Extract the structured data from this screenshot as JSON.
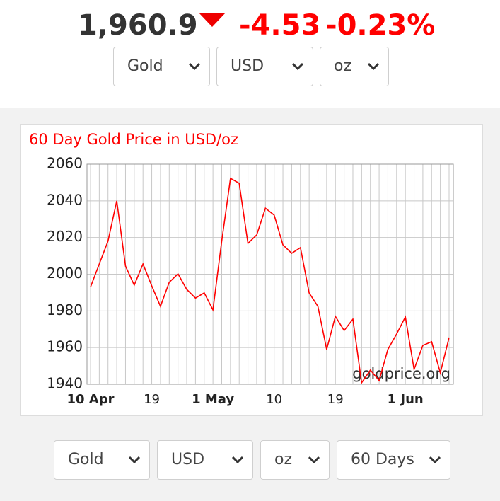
{
  "header": {
    "price": "1,960.9",
    "change": "-4.53",
    "change_percent": "-0.23%"
  },
  "selectors_top": [
    "Gold",
    "USD",
    "oz"
  ],
  "chart_data": {
    "type": "line",
    "title": "60 Day Gold Price in USD/oz",
    "categories": [
      "10 Apr",
      null,
      null,
      null,
      null,
      null,
      null,
      "19",
      null,
      null,
      null,
      null,
      null,
      null,
      "1 May",
      null,
      null,
      null,
      null,
      null,
      null,
      "10",
      null,
      null,
      null,
      null,
      null,
      null,
      "19",
      null,
      null,
      null,
      null,
      null,
      null,
      null,
      "1 Jun",
      null,
      null,
      null,
      null,
      null
    ],
    "values": [
      1993,
      2005.6,
      2018,
      2040,
      2004.4,
      1994,
      2005.6,
      1993.6,
      1982.5,
      1995.6,
      2000.2,
      1991.7,
      1987,
      1989.8,
      1980.5,
      2018,
      2052.3,
      2049.6,
      2016.8,
      2021.4,
      2036,
      2032.2,
      2016,
      2011.4,
      2014.5,
      1989.8,
      1982.5,
      1959,
      1977,
      1969.3,
      1975.5,
      1940.8,
      1947.7,
      1942,
      1959,
      1967.4,
      1976.7,
      1948.1,
      1961.2,
      1963.2,
      1946.2,
      1965.5
    ],
    "color": "#ff0000",
    "watermark": "goldprice.org",
    "ylim": [
      1940,
      2060
    ],
    "yticks": [
      1940,
      1960,
      1980,
      2000,
      2020,
      2040,
      2060
    ],
    "grid": true
  },
  "selectors_bottom": [
    "Gold",
    "USD",
    "oz",
    "60 Days"
  ]
}
